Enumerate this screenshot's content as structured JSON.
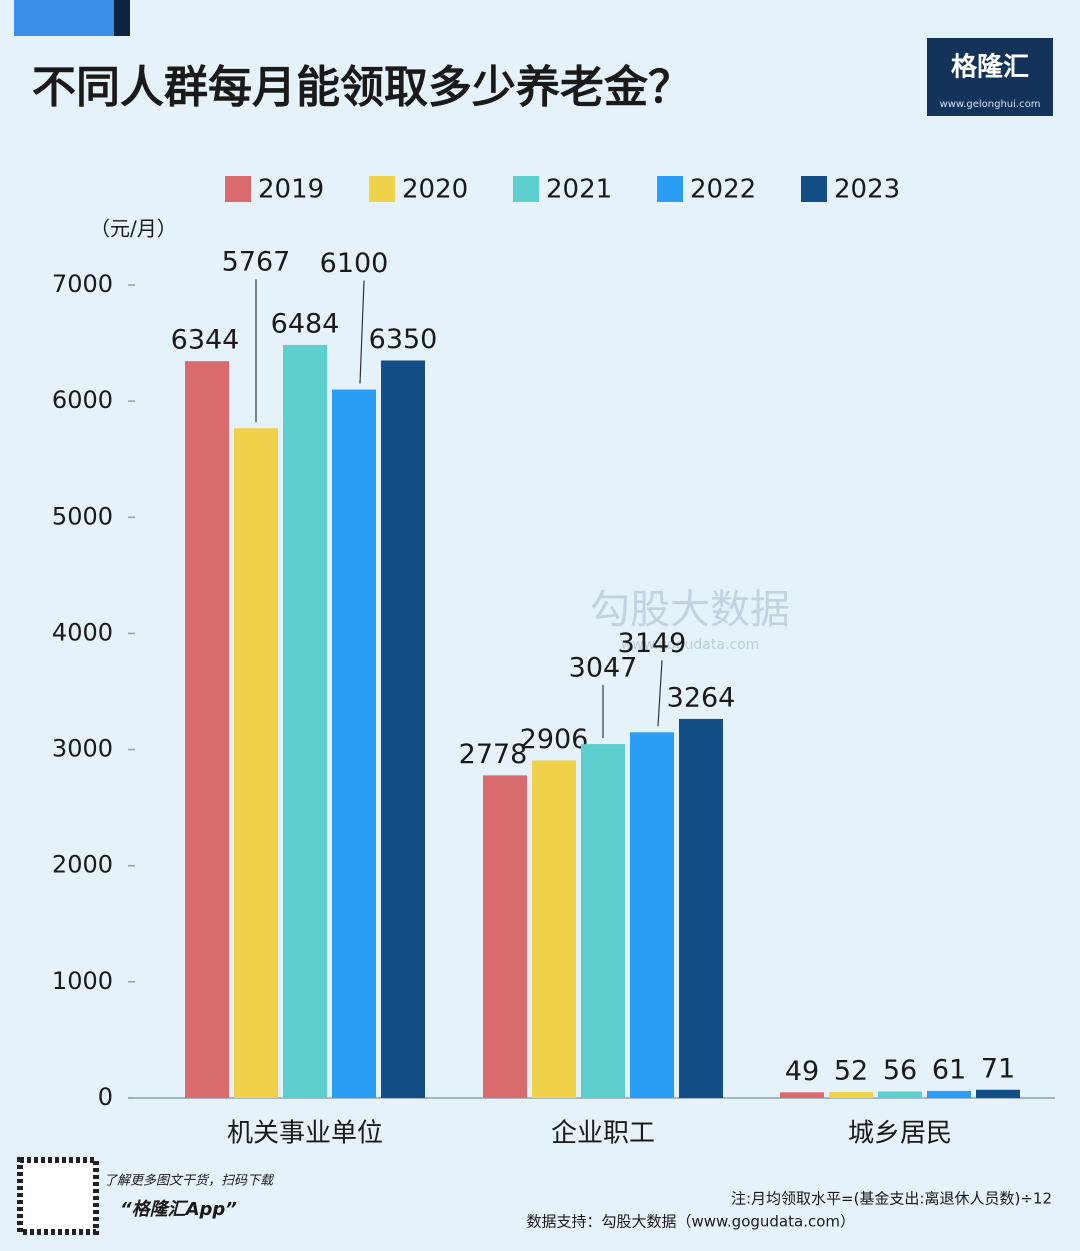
{
  "chart_data": {
    "type": "bar",
    "title": "不同人群每月能领取多少养老金？",
    "ylabel": "（元/月）",
    "categories": [
      "机关事业单位",
      "企业职工",
      "城乡居民"
    ],
    "series": [
      {
        "name": "2019",
        "color": "#d96b6e",
        "values": [
          6344,
          2778,
          49
        ]
      },
      {
        "name": "2020",
        "color": "#f0d24a",
        "values": [
          5767,
          2906,
          52
        ]
      },
      {
        "name": "2021",
        "color": "#5ecfcf",
        "values": [
          6484,
          3047,
          56
        ]
      },
      {
        "name": "2022",
        "color": "#2a9df4",
        "values": [
          6100,
          3149,
          61
        ]
      },
      {
        "name": "2023",
        "color": "#134f86",
        "values": [
          6350,
          3264,
          71
        ]
      }
    ],
    "ylim": [
      0,
      7000
    ],
    "yticks": [
      0,
      1000,
      2000,
      3000,
      4000,
      5000,
      6000,
      7000
    ],
    "grid": false
  },
  "brand": {
    "name": "格隆汇",
    "url": "www.gelonghui.com"
  },
  "watermark": {
    "name": "勾股大数据",
    "url": "www.gogudata.com"
  },
  "footer": {
    "promo": "了解更多图文干货，扫码下载",
    "app": "“格隆汇App”",
    "note": "注:月均领取水平=(基金支出:离退休人员数)÷12",
    "source": "数据支持：勾股大数据（www.gogudata.com）"
  }
}
